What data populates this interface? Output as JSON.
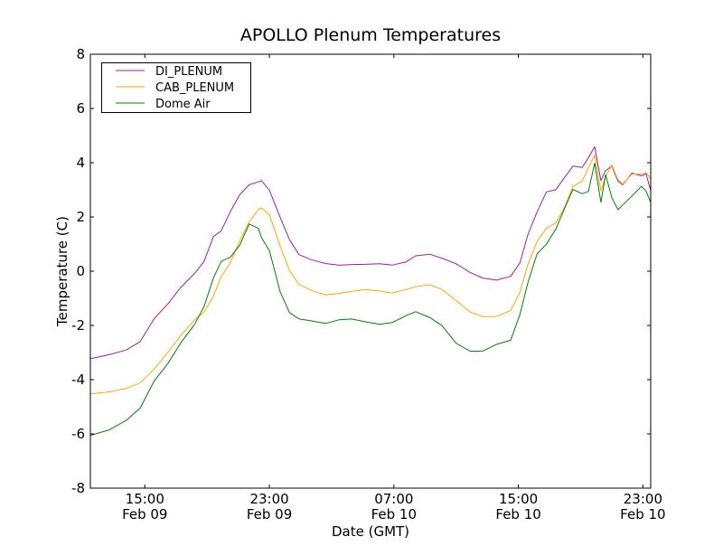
{
  "chart_data": {
    "type": "line",
    "title": "APOLLO Plenum Temperatures",
    "xlabel": "Date (GMT)",
    "ylabel": "Temperature (C)",
    "x_units": "hours since Feb 09 00:00 GMT",
    "xlim": [
      11.5,
      47.5
    ],
    "ylim": [
      -8,
      8
    ],
    "grid": false,
    "legend_position": "top-left",
    "x_ticks": [
      {
        "value": 15,
        "time": "15:00",
        "date": "Feb 09"
      },
      {
        "value": 23,
        "time": "23:00",
        "date": "Feb 09"
      },
      {
        "value": 31,
        "time": "07:00",
        "date": "Feb 10"
      },
      {
        "value": 39,
        "time": "15:00",
        "date": "Feb 10"
      },
      {
        "value": 47,
        "time": "23:00",
        "date": "Feb 10"
      }
    ],
    "y_ticks": [
      {
        "value": 8,
        "label": "8"
      },
      {
        "value": 6,
        "label": "6"
      },
      {
        "value": 4,
        "label": "4"
      },
      {
        "value": 2,
        "label": "2"
      },
      {
        "value": 0,
        "label": "0"
      },
      {
        "value": -2,
        "label": "-2"
      },
      {
        "value": -4,
        "label": "-4"
      },
      {
        "value": -6,
        "label": "-6"
      },
      {
        "value": -8,
        "label": "-8"
      }
    ],
    "x": [
      11.5,
      12.7,
      13.8,
      14.7,
      15.6,
      16.5,
      17.3,
      18.2,
      18.8,
      19.4,
      19.9,
      20.5,
      21.1,
      21.7,
      22.3,
      22.5,
      23.0,
      23.7,
      24.3,
      24.9,
      25.7,
      26.6,
      27.5,
      28.3,
      29.2,
      30.1,
      30.9,
      31.8,
      32.4,
      33.3,
      34.1,
      35.0,
      35.9,
      36.7,
      37.6,
      38.5,
      39.1,
      39.6,
      40.2,
      40.8,
      41.4,
      42.0,
      42.5,
      43.1,
      43.5,
      43.9,
      44.3,
      44.6,
      45.0,
      45.4,
      45.7,
      46.3,
      46.9,
      47.2,
      47.5
    ],
    "series": [
      {
        "name": "DI_PLENUM",
        "color": "#9b1f9b",
        "values": [
          -3.23,
          -3.1,
          -2.93,
          -2.6,
          -1.73,
          -1.17,
          -0.6,
          -0.1,
          0.33,
          1.27,
          1.5,
          2.23,
          2.83,
          3.17,
          3.27,
          3.33,
          3.0,
          2.0,
          1.17,
          0.6,
          0.4,
          0.27,
          0.23,
          0.27,
          0.27,
          0.27,
          0.2,
          0.33,
          0.57,
          0.65,
          0.5,
          0.27,
          -0.07,
          -0.27,
          -0.33,
          -0.17,
          0.33,
          1.33,
          2.17,
          2.9,
          3.0,
          3.5,
          3.9,
          3.83,
          4.17,
          4.57,
          3.33,
          3.73,
          3.9,
          3.33,
          3.17,
          3.6,
          3.5,
          3.6,
          3.0
        ]
      },
      {
        "name": "CAB_PLENUM",
        "color": "#ffa500",
        "values": [
          -4.55,
          -4.45,
          -4.3,
          -4.1,
          -3.6,
          -3.0,
          -2.4,
          -1.8,
          -1.5,
          -0.9,
          -0.2,
          0.3,
          1.1,
          1.8,
          2.3,
          2.35,
          2.1,
          0.9,
          0.0,
          -0.5,
          -0.7,
          -0.85,
          -0.8,
          -0.75,
          -0.7,
          -0.75,
          -0.8,
          -0.65,
          -0.55,
          -0.5,
          -0.7,
          -1.1,
          -1.5,
          -1.65,
          -1.65,
          -1.45,
          -0.8,
          0.2,
          1.1,
          1.6,
          1.8,
          2.4,
          3.1,
          3.3,
          3.8,
          4.3,
          3.0,
          3.5,
          3.9,
          3.35,
          3.2,
          3.6,
          3.6,
          3.65,
          3.4
        ]
      },
      {
        "name": "Dome Air",
        "color": "#008000",
        "values": [
          -6.0,
          -5.8,
          -5.5,
          -5.1,
          -4.1,
          -3.4,
          -2.6,
          -1.9,
          -1.3,
          -0.3,
          0.3,
          0.5,
          1.0,
          1.8,
          1.6,
          1.2,
          0.7,
          -0.8,
          -1.5,
          -1.7,
          -1.8,
          -1.95,
          -1.85,
          -1.8,
          -1.85,
          -1.9,
          -1.85,
          -1.65,
          -1.55,
          -1.75,
          -2.0,
          -2.6,
          -2.9,
          -2.95,
          -2.75,
          -2.6,
          -1.6,
          -0.4,
          0.7,
          1.0,
          1.5,
          2.3,
          3.0,
          2.9,
          3.0,
          4.0,
          2.5,
          3.5,
          2.7,
          2.3,
          2.5,
          2.8,
          3.1,
          2.9,
          2.5
        ]
      }
    ]
  }
}
